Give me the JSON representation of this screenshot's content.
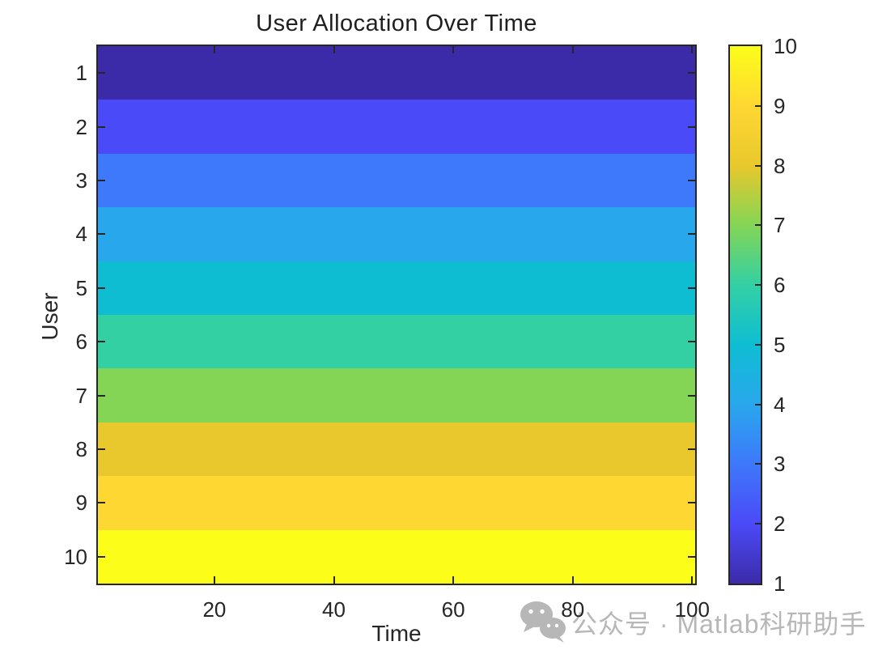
{
  "chart_data": {
    "type": "heatmap",
    "title": "User Allocation Over Time",
    "xlabel": "Time",
    "ylabel": "User",
    "x_range": [
      1,
      100
    ],
    "x_ticks": [
      20,
      40,
      60,
      80,
      100
    ],
    "y_ticks": [
      1,
      2,
      3,
      4,
      5,
      6,
      7,
      8,
      9,
      10
    ],
    "row_values": [
      1,
      2,
      3,
      4,
      5,
      6,
      7,
      8,
      9,
      10
    ],
    "data_description": "imagesc-style heatmap of 10 user rows over time 1..100; each user row k has the constant value k, so the plot renders as 10 flat horizontal color bands",
    "colormap": "parula",
    "band_colors": [
      "#3c2ba8",
      "#4b4af8",
      "#3e78fb",
      "#29a7ec",
      "#0fbdd3",
      "#33d0a4",
      "#84d556",
      "#e8c82c",
      "#ffd733",
      "#fcfe19"
    ],
    "colorbar": {
      "min": 1,
      "max": 10,
      "ticks": [
        1,
        2,
        3,
        4,
        5,
        6,
        7,
        8,
        9,
        10
      ]
    },
    "grid": false,
    "legend": false
  },
  "watermark": {
    "icon": "wechat-icon",
    "text": "公众号 · Matlab科研助手",
    "color": "#b7b7b7"
  },
  "colors": {
    "axis": "#262626",
    "background": "#ffffff"
  }
}
